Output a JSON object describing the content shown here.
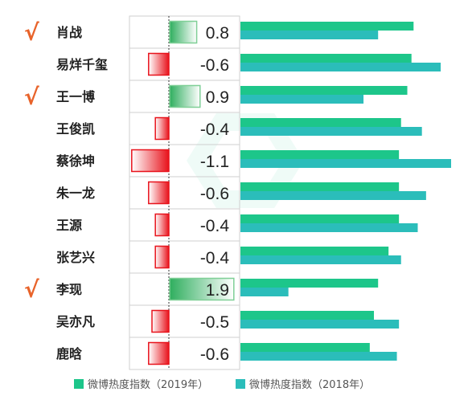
{
  "chart_data": {
    "type": "bar",
    "categories": [
      "肖战",
      "易烊千玺",
      "王一博",
      "王俊凯",
      "蔡徐坤",
      "朱一龙",
      "王源",
      "张艺兴",
      "李现",
      "吴亦凡",
      "鹿晗"
    ],
    "checked": [
      true,
      false,
      true,
      false,
      false,
      false,
      false,
      false,
      true,
      false,
      false
    ],
    "check_mark": "√",
    "change": {
      "values": [
        0.8,
        -0.6,
        0.9,
        -0.4,
        -1.1,
        -0.6,
        -0.4,
        -0.4,
        1.9,
        -0.5,
        -0.6
      ],
      "labels": [
        "0.8",
        "-0.6",
        "0.9",
        "-0.4",
        "-1.1",
        "-0.6",
        "-0.4",
        "-0.4",
        "1.9",
        "-0.5",
        "-0.6"
      ]
    },
    "series": [
      {
        "name": "微博热度指数（2019年）",
        "values": [
          8.3,
          8.2,
          8.0,
          7.7,
          7.6,
          7.6,
          7.6,
          7.1,
          6.6,
          6.4,
          6.2
        ],
        "color": "#1dc68a"
      },
      {
        "name": "微博热度指数（2018年）",
        "values": [
          6.6,
          9.6,
          5.9,
          8.7,
          10.1,
          8.9,
          8.5,
          7.7,
          2.3,
          7.6,
          7.5
        ],
        "color": "#2bbdba"
      }
    ],
    "bar_max": 10.1,
    "colors": {
      "positive": "#7fcf96",
      "negative": "#e8121b",
      "check": "#e8632a",
      "grid": "#cfcfcf",
      "axis": "#333333"
    },
    "legend": {
      "position": "bottom"
    }
  }
}
